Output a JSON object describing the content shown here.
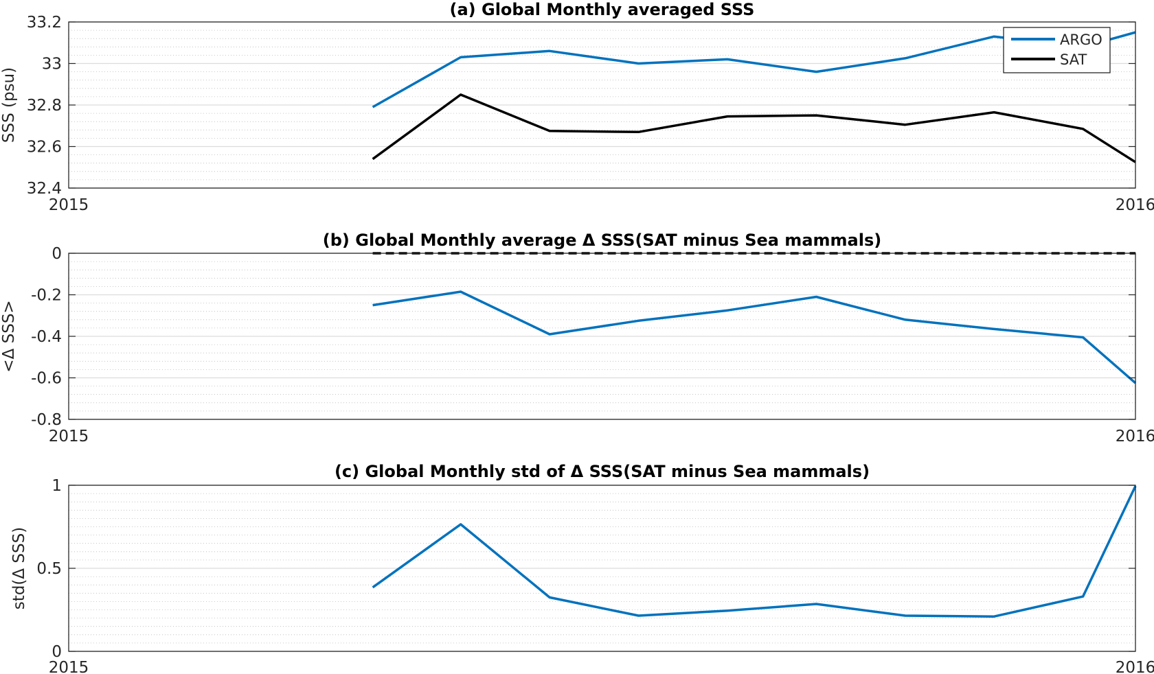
{
  "colors": {
    "argo": "#0072BD",
    "sat": "#000000",
    "grid": "#dcdcdc",
    "minor_grid": "#b8b8b8",
    "axes": "#262626"
  },
  "chart_data": [
    {
      "type": "line",
      "title": "(a) Global Monthly averaged SSS",
      "ylabel": "SSS (psu)",
      "xlabel": "",
      "x_ticks": [
        "2015",
        "2016"
      ],
      "xlim": [
        0,
        12
      ],
      "ylim": [
        32.4,
        33.2
      ],
      "y_ticks": [
        "33.2",
        "33",
        "32.8",
        "32.6",
        "32.4"
      ],
      "y_tick_values": [
        33.2,
        33.0,
        32.8,
        32.6,
        32.4
      ],
      "grid": true,
      "legend_placement": "top-right",
      "x": [
        3.42,
        4.41,
        5.41,
        6.41,
        7.41,
        8.41,
        9.41,
        10.41,
        11.41,
        12.0
      ],
      "series": [
        {
          "name": "ARGO",
          "color": "#0072BD",
          "values": [
            32.79,
            33.03,
            33.06,
            33.0,
            33.02,
            32.96,
            33.025,
            33.13,
            33.08,
            33.15
          ]
        },
        {
          "name": "SAT",
          "color": "#000000",
          "values": [
            32.54,
            32.85,
            32.675,
            32.67,
            32.745,
            32.75,
            32.705,
            32.765,
            32.685,
            32.525
          ]
        }
      ]
    },
    {
      "type": "line",
      "title": "(b) Global Monthly average Δ SSS(SAT minus Sea mammals)",
      "ylabel": "<Δ SSS>",
      "xlabel": "",
      "x_ticks": [
        "2015",
        "2016"
      ],
      "xlim": [
        0,
        12
      ],
      "ylim": [
        -0.8,
        0
      ],
      "y_ticks": [
        "0",
        "-0.2",
        "-0.4",
        "-0.6",
        "-0.8"
      ],
      "y_tick_values": [
        0,
        -0.2,
        -0.4,
        -0.6,
        -0.8
      ],
      "grid": true,
      "reference_line": {
        "y": 0,
        "style": "dashed",
        "x_from": 3.42,
        "x_to": 12.0
      },
      "x": [
        3.42,
        4.41,
        5.41,
        6.41,
        7.41,
        8.41,
        9.41,
        10.41,
        11.41,
        12.0
      ],
      "series": [
        {
          "color": "#0072BD",
          "values": [
            -0.25,
            -0.185,
            -0.39,
            -0.325,
            -0.275,
            -0.21,
            -0.32,
            -0.365,
            -0.405,
            -0.625
          ]
        }
      ]
    },
    {
      "type": "line",
      "title": "(c) Global Monthly std of Δ SSS(SAT minus Sea mammals)",
      "ylabel": "std(Δ SSS)",
      "xlabel": "",
      "x_ticks": [
        "2015",
        "2016"
      ],
      "xlim": [
        0,
        12
      ],
      "ylim": [
        0,
        1
      ],
      "y_ticks": [
        "1",
        "0.5",
        "0"
      ],
      "y_tick_values": [
        1,
        0.5,
        0
      ],
      "grid": true,
      "x": [
        3.42,
        4.41,
        5.41,
        6.41,
        7.41,
        8.41,
        9.41,
        10.41,
        11.41,
        12.0
      ],
      "series": [
        {
          "color": "#0072BD",
          "values": [
            0.385,
            0.765,
            0.325,
            0.215,
            0.245,
            0.285,
            0.215,
            0.21,
            0.33,
            0.995
          ]
        }
      ]
    }
  ]
}
